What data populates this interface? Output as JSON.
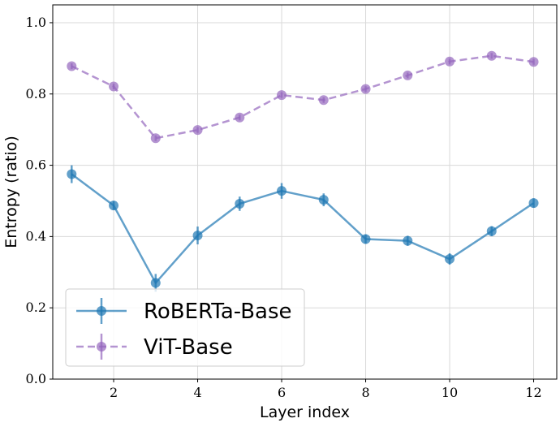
{
  "chart_data": {
    "type": "line",
    "title": "",
    "xlabel": "Layer index",
    "ylabel": "Entropy (ratio)",
    "xlim": [
      0.55,
      12.55
    ],
    "ylim": [
      0.0,
      1.05
    ],
    "xticks": [
      2,
      4,
      6,
      8,
      10,
      12
    ],
    "xtick_labels": [
      "2",
      "4",
      "6",
      "8",
      "10",
      "12"
    ],
    "yticks": [
      0.0,
      0.2,
      0.4,
      0.6,
      0.8,
      1.0
    ],
    "ytick_labels": [
      "0.0",
      "0.2",
      "0.4",
      "0.6",
      "0.8",
      "1.0"
    ],
    "grid": true,
    "legend_position": "lower-left",
    "x": [
      1,
      2,
      3,
      4,
      5,
      6,
      7,
      8,
      9,
      10,
      11,
      12
    ],
    "series": [
      {
        "name": "RoBERTa-Base",
        "color": "#1f77b4",
        "linestyle": "solid",
        "values": [
          0.575,
          0.487,
          0.27,
          0.403,
          0.492,
          0.528,
          0.503,
          0.393,
          0.388,
          0.337,
          0.415,
          0.494
        ],
        "errors": [
          0.025,
          0.012,
          0.025,
          0.025,
          0.02,
          0.022,
          0.018,
          0.013,
          0.014,
          0.016,
          0.014,
          0.013
        ]
      },
      {
        "name": "ViT-Base",
        "color": "#9467bd",
        "linestyle": "dashed",
        "values": [
          0.878,
          0.821,
          0.676,
          0.699,
          0.734,
          0.797,
          0.783,
          0.814,
          0.852,
          0.891,
          0.907,
          0.89
        ],
        "errors": [
          0.008,
          0.008,
          0.008,
          0.008,
          0.008,
          0.008,
          0.008,
          0.008,
          0.008,
          0.008,
          0.008,
          0.008
        ]
      }
    ]
  }
}
